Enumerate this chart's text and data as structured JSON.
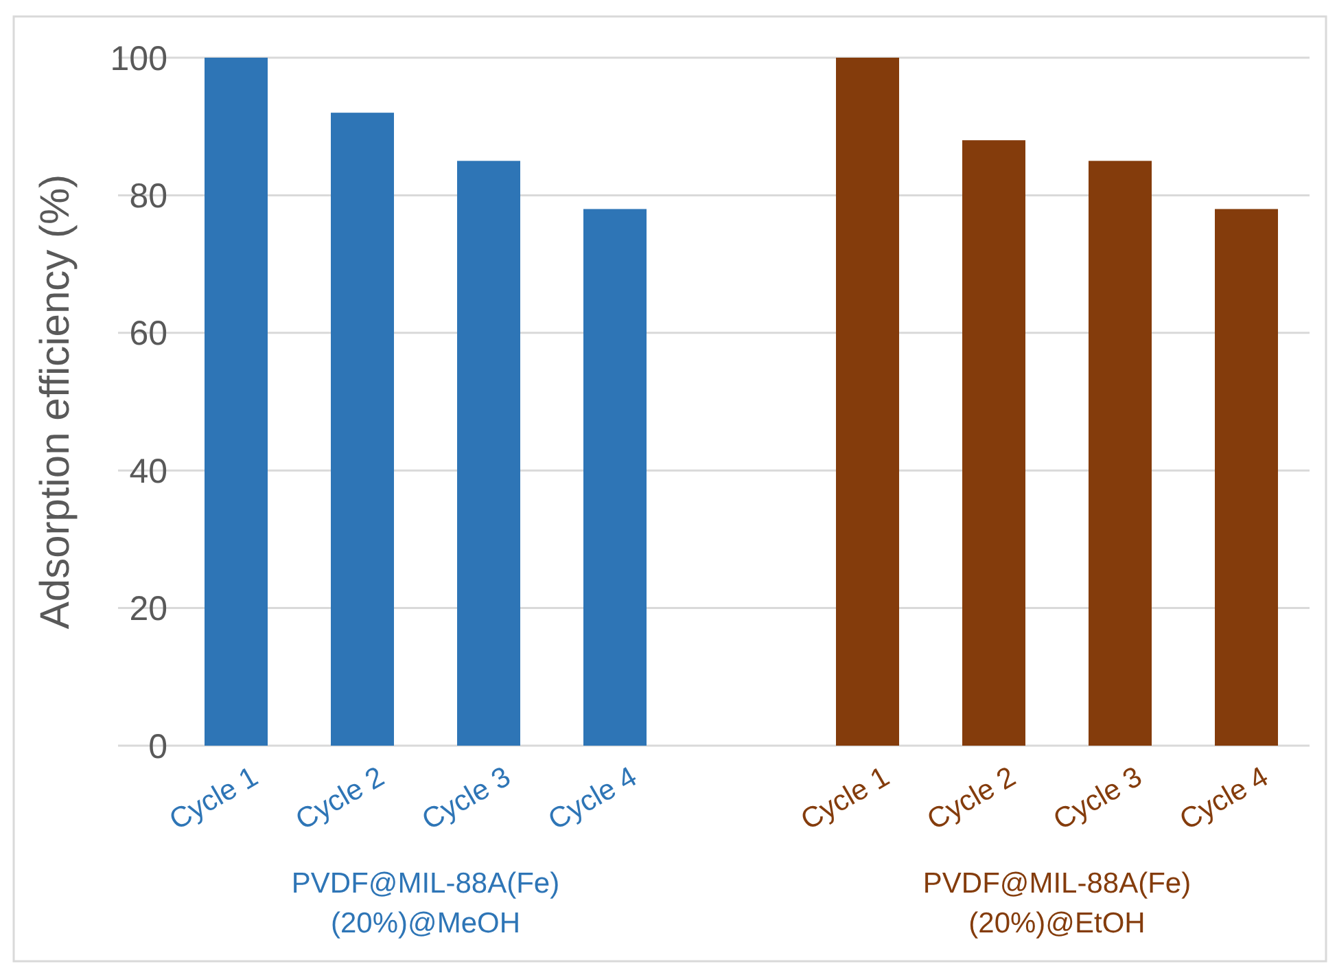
{
  "chart_data": {
    "type": "bar",
    "ylabel": "Adsorption efficiency (%)",
    "categories": [
      "Cycle 1",
      "Cycle 2",
      "Cycle 3",
      "Cycle 4",
      null,
      "Cycle 1",
      "Cycle 2",
      "Cycle 3",
      "Cycle 4"
    ],
    "series": [
      {
        "name": "PVDF@MIL-88A(Fe)\n(20%)@MeOH",
        "color": "#2e75b6",
        "values": [
          100,
          92,
          85,
          78,
          null,
          null,
          null,
          null,
          null
        ]
      },
      {
        "name": "PVDF@MIL-88A(Fe)\n(20%)@EtOH",
        "color": "#843c0c",
        "values": [
          null,
          null,
          null,
          null,
          null,
          100,
          88,
          85,
          78
        ]
      }
    ],
    "ylim": [
      0,
      100
    ],
    "yticks": [
      0,
      20,
      40,
      60,
      80,
      100
    ],
    "grid": "y",
    "legend": false
  }
}
